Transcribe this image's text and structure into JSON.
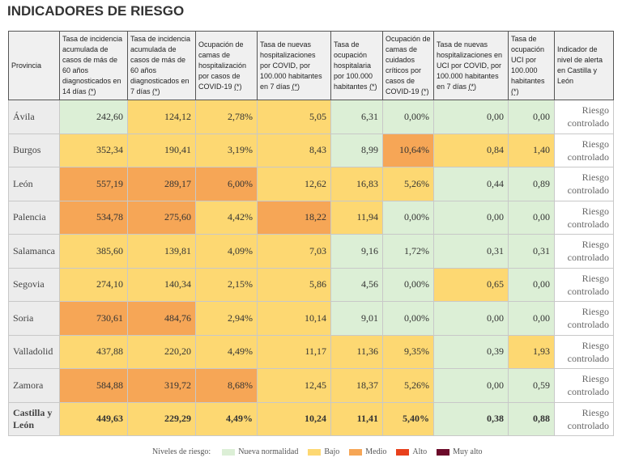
{
  "title": "INDICADORES DE RIESGO",
  "headers": [
    "Provincia",
    "Tasa de incidencia acumulada de casos de más de 60 años diagnosticados en 14 días",
    "Tasa de incidencia acumulada de casos de más de 60 años diagnosticados en 7 días",
    "Ocupación de camas de hospitalización por casos de COVID-19",
    "Tasa de nuevas hospitalizaciones por COVID, por 100.000 habitantes en 7 días",
    "Tasa de ocupación hospitalaria por 100.000 habitantes",
    "Ocupación de camas de cuidados críticos por casos de COVID-19",
    "Tasa de nuevas hospitalizaciones en UCI por COVID, por 100.000 habitantes en 7 días",
    "Tasa de ocupación UCI por 100.000 habitantes",
    "Indicador de nivel de alerta en Castilla y León"
  ],
  "footnote_mark": "(*)",
  "rows": [
    {
      "provincia": "Ávila",
      "values": [
        "242,60",
        "124,12",
        "2,78%",
        "5,05",
        "6,31",
        "0,00%",
        "0,00",
        "0,00"
      ],
      "levels": [
        "g",
        "y",
        "y",
        "y",
        "g",
        "g",
        "g",
        "g"
      ],
      "alert": "Riesgo controlado"
    },
    {
      "provincia": "Burgos",
      "values": [
        "352,34",
        "190,41",
        "3,19%",
        "8,43",
        "8,99",
        "10,64%",
        "0,84",
        "1,40"
      ],
      "levels": [
        "y",
        "y",
        "y",
        "y",
        "g",
        "o",
        "y",
        "y"
      ],
      "alert": "Riesgo controlado"
    },
    {
      "provincia": "León",
      "values": [
        "557,19",
        "289,17",
        "6,00%",
        "12,62",
        "16,83",
        "5,26%",
        "0,44",
        "0,89"
      ],
      "levels": [
        "o",
        "o",
        "o",
        "y",
        "y",
        "y",
        "g",
        "g"
      ],
      "alert": "Riesgo controlado"
    },
    {
      "provincia": "Palencia",
      "values": [
        "534,78",
        "275,60",
        "4,42%",
        "18,22",
        "11,94",
        "0,00%",
        "0,00",
        "0,00"
      ],
      "levels": [
        "o",
        "o",
        "y",
        "o",
        "y",
        "g",
        "g",
        "g"
      ],
      "alert": "Riesgo controlado"
    },
    {
      "provincia": "Salamanca",
      "values": [
        "385,60",
        "139,81",
        "4,09%",
        "7,03",
        "9,16",
        "1,72%",
        "0,31",
        "0,31"
      ],
      "levels": [
        "y",
        "y",
        "y",
        "y",
        "g",
        "g",
        "g",
        "g"
      ],
      "alert": "Riesgo controlado"
    },
    {
      "provincia": "Segovia",
      "values": [
        "274,10",
        "140,34",
        "2,15%",
        "5,86",
        "4,56",
        "0,00%",
        "0,65",
        "0,00"
      ],
      "levels": [
        "y",
        "y",
        "y",
        "y",
        "g",
        "g",
        "y",
        "g"
      ],
      "alert": "Riesgo controlado"
    },
    {
      "provincia": "Soria",
      "values": [
        "730,61",
        "484,76",
        "2,94%",
        "10,14",
        "9,01",
        "0,00%",
        "0,00",
        "0,00"
      ],
      "levels": [
        "o",
        "o",
        "y",
        "y",
        "g",
        "g",
        "g",
        "g"
      ],
      "alert": "Riesgo controlado"
    },
    {
      "provincia": "Valladolid",
      "values": [
        "437,88",
        "220,20",
        "4,49%",
        "11,17",
        "11,36",
        "9,35%",
        "0,39",
        "1,93"
      ],
      "levels": [
        "y",
        "y",
        "y",
        "y",
        "y",
        "y",
        "g",
        "y"
      ],
      "alert": "Riesgo controlado"
    },
    {
      "provincia": "Zamora",
      "values": [
        "584,88",
        "319,72",
        "8,68%",
        "12,45",
        "18,37",
        "5,26%",
        "0,00",
        "0,59"
      ],
      "levels": [
        "o",
        "o",
        "o",
        "y",
        "y",
        "y",
        "g",
        "g"
      ],
      "alert": "Riesgo controlado"
    },
    {
      "provincia": "Castilla y León",
      "values": [
        "449,63",
        "229,29",
        "4,49%",
        "10,24",
        "11,41",
        "5,40%",
        "0,38",
        "0,88"
      ],
      "levels": [
        "y",
        "y",
        "y",
        "y",
        "y",
        "y",
        "g",
        "g"
      ],
      "alert": "Riesgo controlado",
      "total": true
    }
  ],
  "legend": {
    "label": "Niveles de riesgo:",
    "items": [
      {
        "name": "Nueva normalidad",
        "color": "#dcefd6"
      },
      {
        "name": "Bajo",
        "color": "#fdd872"
      },
      {
        "name": "Medio",
        "color": "#f6a656"
      },
      {
        "name": "Alto",
        "color": "#e8401c"
      },
      {
        "name": "Muy alto",
        "color": "#6b0a2a"
      }
    ]
  }
}
